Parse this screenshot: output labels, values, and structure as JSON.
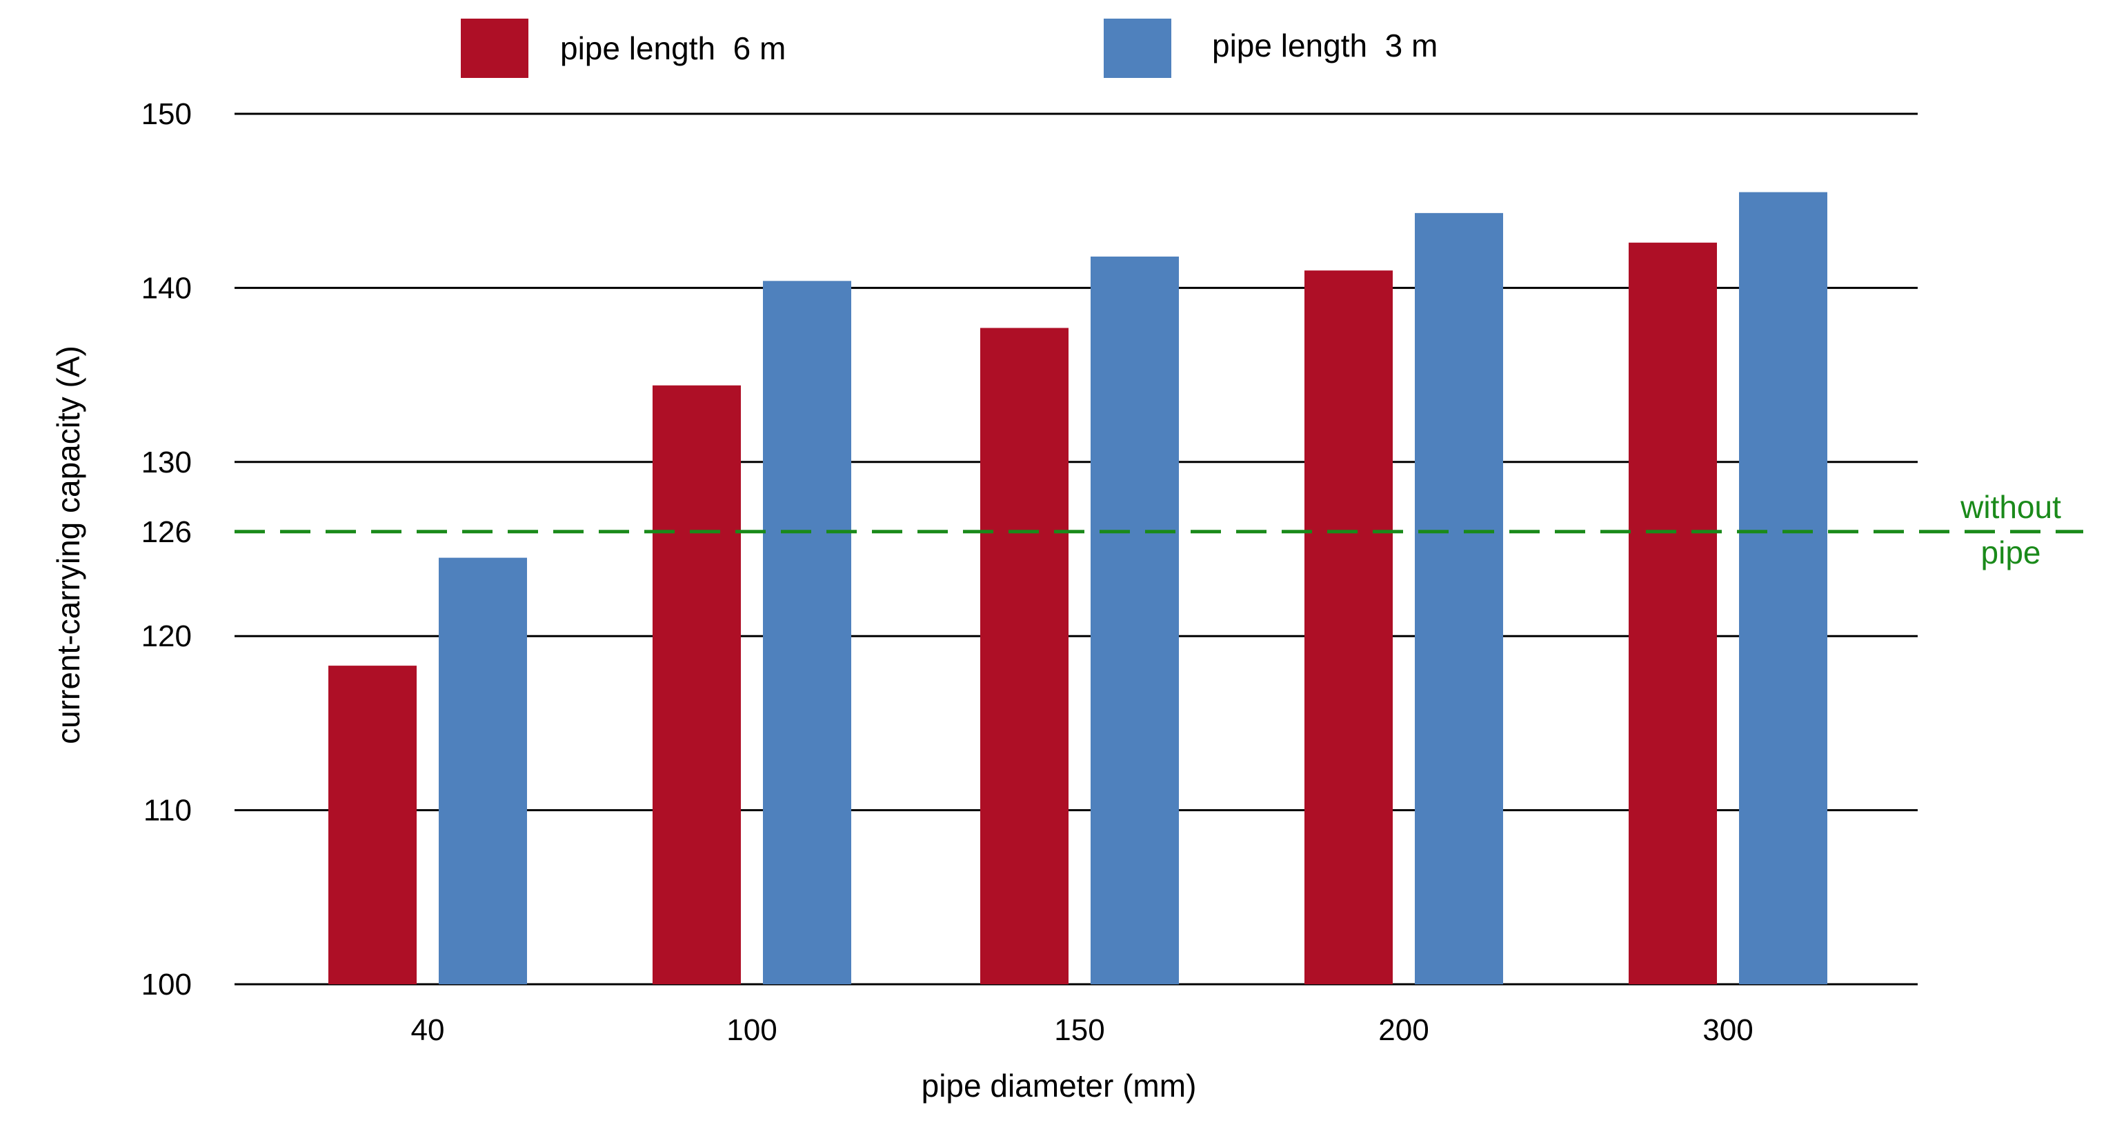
{
  "chart_data": {
    "type": "bar",
    "categories": [
      "40",
      "100",
      "150",
      "200",
      "300"
    ],
    "series": [
      {
        "name": "pipe length  6 m",
        "color": "#ae0f26",
        "values": [
          118.3,
          134.4,
          137.7,
          141.0,
          142.6
        ]
      },
      {
        "name": "pipe length  3 m",
        "color": "#4f81bd",
        "values": [
          124.5,
          140.4,
          141.8,
          144.3,
          145.5
        ]
      }
    ],
    "title": "",
    "xlabel": "pipe diameter (mm)",
    "ylabel": "current-carrying capacity (A)",
    "ylim": [
      100,
      150
    ],
    "yticks": [
      100,
      110,
      120,
      130,
      140,
      150
    ],
    "grid": true,
    "legend_position": "top",
    "reference_line": {
      "value": 126,
      "tick_label": "126",
      "label_line1": "without",
      "label_line2": "pipe",
      "color": "#1a8a1a",
      "style": "dashed"
    }
  }
}
